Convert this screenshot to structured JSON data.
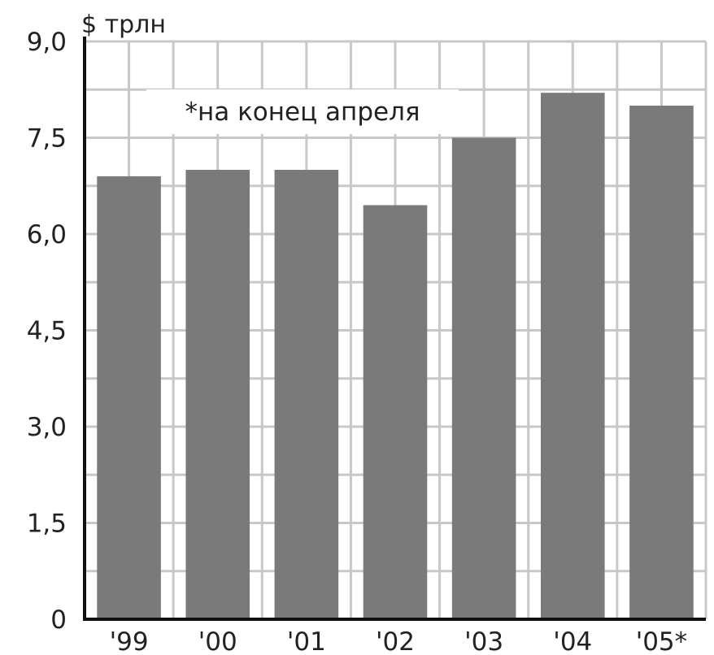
{
  "chart_data": {
    "type": "bar",
    "unit_label": "$ трлн",
    "annotation": "*на конец апреля",
    "categories": [
      "'99",
      "'00",
      "'01",
      "'02",
      "'03",
      "'04",
      "'05*"
    ],
    "values": [
      6.9,
      7.0,
      7.0,
      6.45,
      7.5,
      8.2,
      8.0
    ],
    "yticks": [
      "0",
      "1,5",
      "3,0",
      "4,5",
      "6,0",
      "7,5",
      "9,0"
    ],
    "ylim": [
      0,
      9.0
    ],
    "grid": true,
    "colors": {
      "bar": "#7a7a7a",
      "grid": "#c8c8c8",
      "axis": "#111111",
      "text": "#222222",
      "annotation_bg": "#ffffff"
    }
  }
}
